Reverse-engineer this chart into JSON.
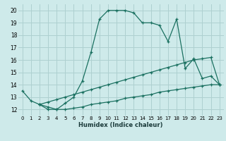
{
  "xlabel": "Humidex (Indice chaleur)",
  "background_color": "#ceeaea",
  "grid_color": "#aed0d0",
  "line_color": "#1a7060",
  "xlim": [
    -0.5,
    23.5
  ],
  "ylim": [
    11.5,
    20.5
  ],
  "xticks": [
    0,
    1,
    2,
    3,
    4,
    5,
    6,
    7,
    8,
    9,
    10,
    11,
    12,
    13,
    14,
    15,
    16,
    17,
    18,
    19,
    20,
    21,
    22,
    23
  ],
  "yticks": [
    12,
    13,
    14,
    15,
    16,
    17,
    18,
    19,
    20
  ],
  "line1_x": [
    0,
    1,
    2,
    3,
    4,
    5,
    6,
    7,
    8,
    9,
    10,
    11,
    12,
    13,
    14,
    15,
    16,
    17,
    18,
    19,
    20,
    21,
    22,
    23
  ],
  "line1_y": [
    13.5,
    12.7,
    12.4,
    12.0,
    12.0,
    12.5,
    13.0,
    14.3,
    16.6,
    19.3,
    20.0,
    20.0,
    20.0,
    19.8,
    19.0,
    19.0,
    18.8,
    17.5,
    19.3,
    15.3,
    16.1,
    14.5,
    14.7,
    14.0
  ],
  "line2_x": [
    2,
    3,
    4,
    5,
    6,
    7,
    8,
    9,
    10,
    11,
    12,
    13,
    14,
    15,
    16,
    17,
    18,
    19,
    20,
    21,
    22,
    23
  ],
  "line2_y": [
    12.4,
    12.6,
    12.8,
    13.0,
    13.2,
    13.4,
    13.6,
    13.8,
    14.0,
    14.2,
    14.4,
    14.6,
    14.8,
    15.0,
    15.2,
    15.4,
    15.6,
    15.8,
    16.0,
    16.1,
    16.2,
    14.0
  ],
  "line3_x": [
    2,
    3,
    4,
    5,
    6,
    7,
    8,
    9,
    10,
    11,
    12,
    13,
    14,
    15,
    16,
    17,
    18,
    19,
    20,
    21,
    22,
    23
  ],
  "line3_y": [
    12.4,
    12.2,
    12.0,
    12.0,
    12.1,
    12.2,
    12.4,
    12.5,
    12.6,
    12.7,
    12.9,
    13.0,
    13.1,
    13.2,
    13.4,
    13.5,
    13.6,
    13.7,
    13.8,
    13.9,
    14.0,
    14.0
  ]
}
